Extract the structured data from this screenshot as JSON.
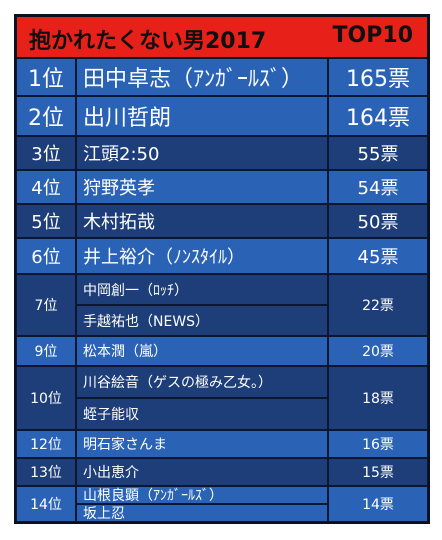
{
  "title": {
    "left": "抱かれたくない男2017",
    "right": "TOP10"
  },
  "rows": [
    {
      "rank": "1位",
      "name": "田中卓志（ｱﾝｶﾞｰﾙｽﾞ）",
      "votes": "165票"
    },
    {
      "rank": "2位",
      "name": "出川哲朗",
      "votes": "164票"
    },
    {
      "rank": "3位",
      "name": "江頭2:50",
      "votes": "55票"
    },
    {
      "rank": "4位",
      "name": "狩野英孝",
      "votes": "54票"
    },
    {
      "rank": "5位",
      "name": "木村拓哉",
      "votes": "50票"
    },
    {
      "rank": "6位",
      "name": "井上裕介（ﾉﾝｽﾀｲﾙ）",
      "votes": "45票"
    },
    {
      "rank": "7位",
      "names": [
        "中岡創一（ﾛｯﾁ）",
        "手越祐也（NEWS）"
      ],
      "votes": "22票"
    },
    {
      "rank": "9位",
      "name": "松本潤（嵐）",
      "votes": "20票"
    },
    {
      "rank": "10位",
      "names": [
        "川谷絵音（ゲスの極み乙女。）",
        "蛭子能収"
      ],
      "votes": "18票"
    },
    {
      "rank": "12位",
      "name": "明石家さんま",
      "votes": "16票"
    },
    {
      "rank": "13位",
      "name": "小出恵介",
      "votes": "15票"
    },
    {
      "rank": "14位",
      "names": [
        "山根良顕（ｱﾝｶﾞｰﾙｽﾞ）",
        "坂上忍"
      ],
      "votes": "14票"
    }
  ]
}
